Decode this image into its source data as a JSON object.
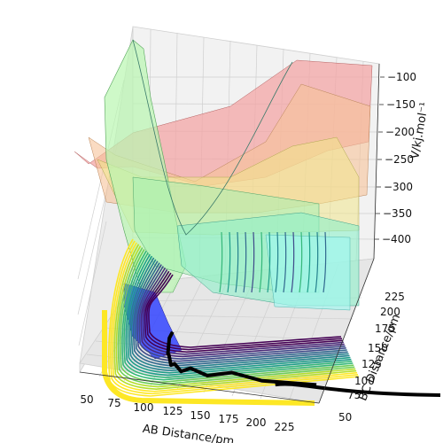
{
  "chart_data": {
    "type": "surface",
    "xlabel": "AB Distance/pm",
    "ylabel": "BC Distance/pm",
    "zlabel": "V/kj.mol⁻¹",
    "xticks": [
      "50",
      "75",
      "100",
      "125",
      "150",
      "175",
      "200",
      "225"
    ],
    "yticks": [
      "50",
      "75",
      "100",
      "125",
      "150",
      "175",
      "200",
      "225"
    ],
    "zticks": [
      "−100",
      "−150",
      "−200",
      "−250",
      "−300",
      "−350",
      "−400"
    ],
    "xlim": [
      50,
      240
    ],
    "ylim": [
      50,
      230
    ],
    "zlim": [
      -430,
      -80
    ],
    "grid": true,
    "colormaps": {
      "surface": "jet",
      "contours": "viridis"
    },
    "trajectory": {
      "color": "#000000",
      "points": [
        [
          230,
          98
        ],
        [
          185,
          98
        ],
        [
          160,
          97
        ],
        [
          140,
          96
        ],
        [
          126,
          96
        ],
        [
          118,
          97
        ],
        [
          112,
          99
        ],
        [
          108,
          103
        ],
        [
          105,
          108
        ],
        [
          102,
          116
        ],
        [
          100,
          128
        ],
        [
          99,
          142
        ]
      ]
    },
    "surface_colors": [
      "#f3a6a6",
      "#f7c39a",
      "#f0e58c",
      "#c6f59e",
      "#8ef0c9",
      "#6fd0f0",
      "#3355ff"
    ],
    "contour_colors": [
      "#fde725",
      "#b5de2b",
      "#6ece58",
      "#35b779",
      "#1f9e89",
      "#26828e",
      "#31688e",
      "#3e4989",
      "#482878",
      "#440154"
    ]
  }
}
